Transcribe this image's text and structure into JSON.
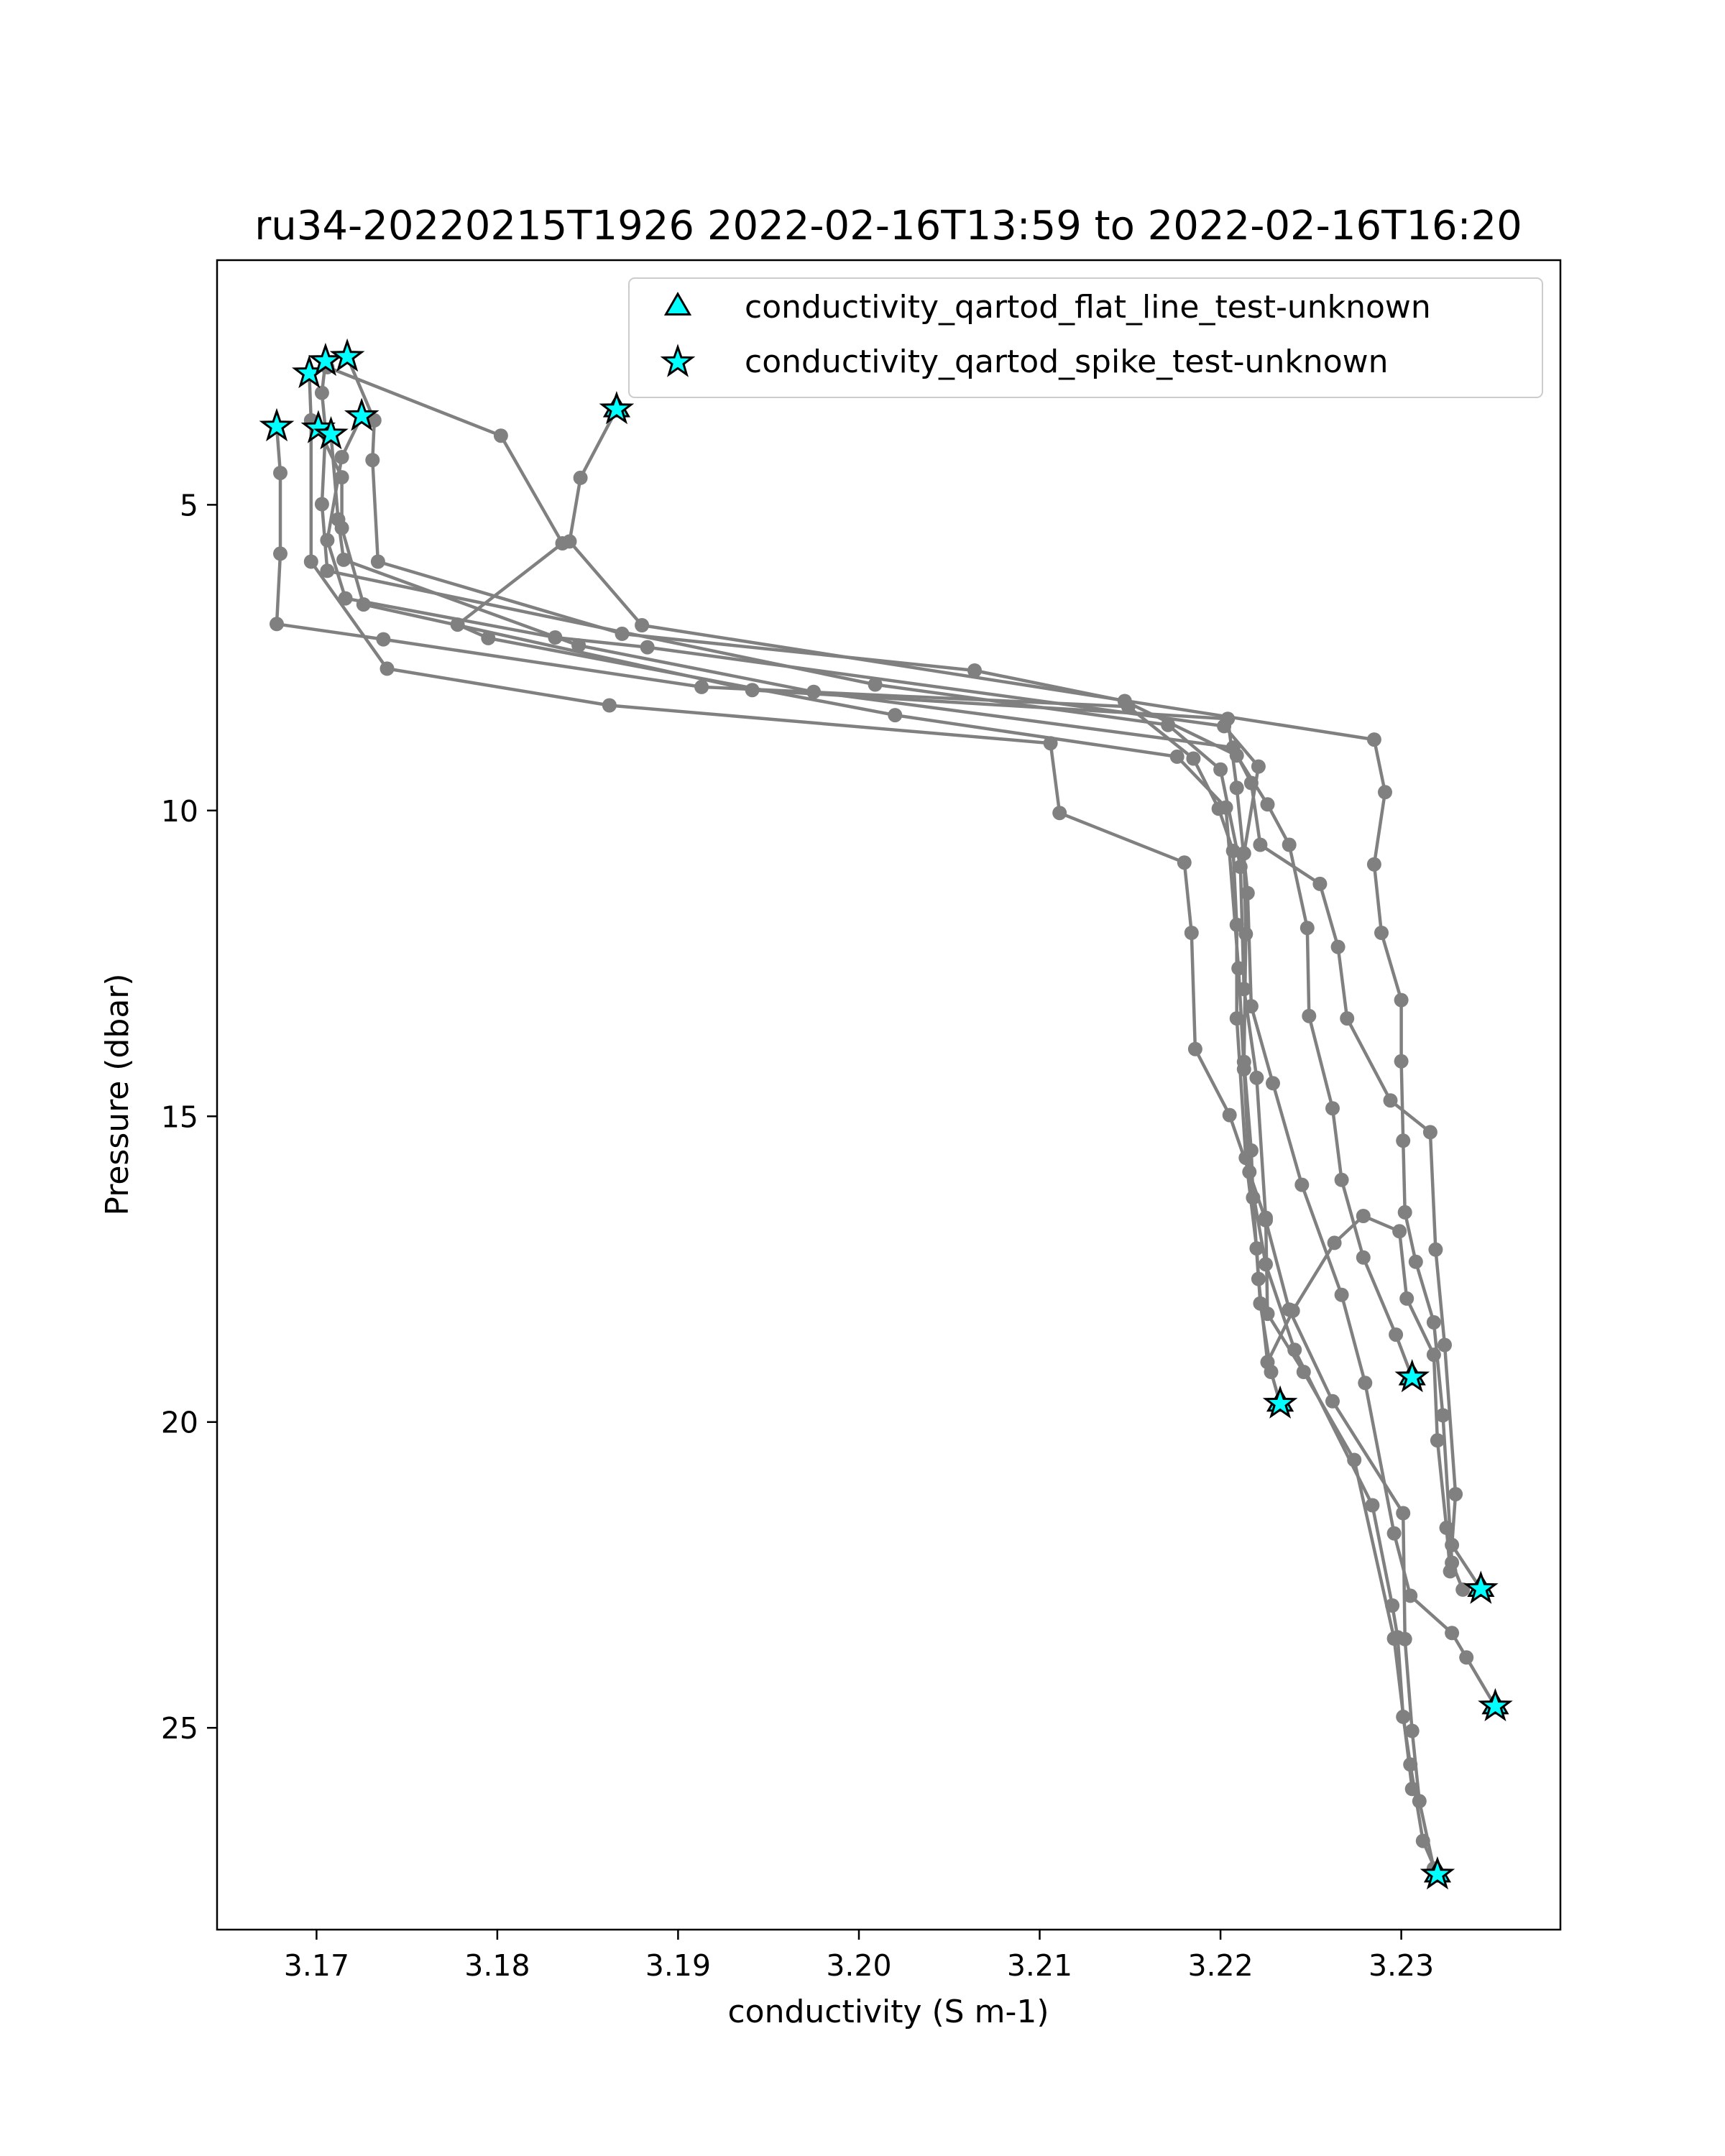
{
  "colors": {
    "profile_line": "#808080",
    "marker_fill": "#00ffff",
    "marker_edge": "#000000",
    "axes": "#000000",
    "legend_border": "#cccccc"
  },
  "chart_data": {
    "type": "scatter",
    "title": "ru34-20220215T1926 2022-02-16T13:59 to 2022-02-16T16:20",
    "xlabel": "conductivity (S m-1)",
    "ylabel": "Pressure (dbar)",
    "xlim": [
      3.1645,
      3.2388
    ],
    "ylim": [
      28.3,
      1.0
    ],
    "y_inverted": true,
    "grid": false,
    "legend_position": "top-right",
    "x_ticks": [
      3.17,
      3.18,
      3.19,
      3.2,
      3.21,
      3.22,
      3.23
    ],
    "x_tick_labels": [
      "3.17",
      "3.18",
      "3.19",
      "3.20",
      "3.21",
      "3.22",
      "3.23"
    ],
    "y_ticks": [
      5,
      10,
      15,
      20,
      25
    ],
    "y_tick_labels": [
      "5",
      "10",
      "15",
      "20",
      "25"
    ],
    "legend": [
      {
        "label": "conductivity_qartod_flat_line_test-unknown",
        "marker": "triangle"
      },
      {
        "label": "conductivity_qartod_spike_test-unknown",
        "marker": "star"
      }
    ],
    "profiles": [
      [
        [
          3.1678,
          3.72
        ],
        [
          3.168,
          4.48
        ],
        [
          3.168,
          5.8
        ],
        [
          3.1678,
          6.95
        ],
        [
          3.1737,
          7.2
        ],
        [
          3.1913,
          7.98
        ],
        [
          3.2149,
          8.3
        ],
        [
          3.2185,
          9.15
        ],
        [
          3.2199,
          9.97
        ],
        [
          3.2207,
          10.66
        ],
        [
          3.2209,
          11.87
        ],
        [
          3.2209,
          13.4
        ],
        [
          3.2214,
          15.68
        ],
        [
          3.222,
          17.16
        ],
        [
          3.2222,
          18.06
        ],
        [
          3.2228,
          19.18
        ],
        [
          3.2233,
          19.7
        ]
      ],
      [
        [
          3.1696,
          2.85
        ],
        [
          3.1697,
          3.62
        ],
        [
          3.1697,
          5.93
        ],
        [
          3.1739,
          7.68
        ],
        [
          3.1862,
          8.28
        ],
        [
          3.2106,
          8.9
        ],
        [
          3.2111,
          10.04
        ],
        [
          3.218,
          10.85
        ],
        [
          3.2184,
          12.0
        ],
        [
          3.2186,
          13.9
        ],
        [
          3.2205,
          14.98
        ],
        [
          3.2225,
          16.7
        ],
        [
          3.2238,
          18.16
        ],
        [
          3.2262,
          19.66
        ],
        [
          3.2301,
          21.49
        ],
        [
          3.2302,
          23.55
        ],
        [
          3.2306,
          25.05
        ],
        [
          3.231,
          26.2
        ],
        [
          3.2318,
          27.3
        ]
      ],
      [
        [
          3.1705,
          2.65
        ],
        [
          3.1703,
          3.17
        ],
        [
          3.1705,
          3.79
        ],
        [
          3.1703,
          4.99
        ],
        [
          3.1706,
          6.08
        ],
        [
          3.2009,
          7.94
        ],
        [
          3.2171,
          8.6
        ],
        [
          3.22,
          9.33
        ],
        [
          3.2211,
          10.92
        ],
        [
          3.2213,
          12.92
        ],
        [
          3.222,
          14.37
        ],
        [
          3.2225,
          16.66
        ],
        [
          3.2226,
          18.23
        ],
        [
          3.2246,
          19.18
        ],
        [
          3.2274,
          20.62
        ],
        [
          3.2296,
          23.54
        ],
        [
          3.2306,
          26.0
        ]
      ],
      [
        [
          3.1717,
          2.58
        ],
        [
          3.1732,
          3.62
        ],
        [
          3.1731,
          4.27
        ],
        [
          3.1734,
          5.93
        ],
        [
          3.1869,
          7.11
        ],
        [
          3.2064,
          7.71
        ],
        [
          3.2147,
          8.21
        ],
        [
          3.2209,
          9.1
        ],
        [
          3.2226,
          9.9
        ],
        [
          3.2238,
          10.56
        ],
        [
          3.2248,
          11.92
        ],
        [
          3.2249,
          13.36
        ],
        [
          3.2262,
          14.87
        ],
        [
          3.2267,
          16.04
        ],
        [
          3.2279,
          17.31
        ],
        [
          3.2297,
          18.57
        ],
        [
          3.2306,
          19.27
        ]
      ],
      [
        [
          3.1701,
          3.75
        ],
        [
          3.1714,
          4.55
        ],
        [
          3.1714,
          5.38
        ],
        [
          3.1726,
          6.63
        ],
        [
          3.1941,
          8.03
        ],
        [
          3.2204,
          8.5
        ],
        [
          3.2209,
          9.63
        ],
        [
          3.2215,
          11.35
        ],
        [
          3.2217,
          13.2
        ],
        [
          3.2229,
          14.46
        ],
        [
          3.2245,
          16.12
        ],
        [
          3.2267,
          17.92
        ],
        [
          3.228,
          19.36
        ],
        [
          3.2296,
          21.82
        ],
        [
          3.2305,
          22.84
        ],
        [
          3.2328,
          23.45
        ],
        [
          3.2336,
          23.85
        ],
        [
          3.2352,
          24.65
        ]
      ],
      [
        [
          3.1708,
          3.85
        ],
        [
          3.1712,
          5.24
        ],
        [
          3.1715,
          5.9
        ],
        [
          3.1845,
          7.3
        ],
        [
          3.1975,
          8.06
        ],
        [
          3.2207,
          8.97
        ],
        [
          3.2217,
          9.55
        ],
        [
          3.2222,
          10.56
        ],
        [
          3.2255,
          11.2
        ],
        [
          3.2265,
          12.23
        ],
        [
          3.227,
          13.4
        ],
        [
          3.2294,
          14.74
        ],
        [
          3.2316,
          15.26
        ],
        [
          3.2319,
          17.18
        ],
        [
          3.2324,
          18.74
        ],
        [
          3.233,
          21.18
        ],
        [
          3.2328,
          22.01
        ],
        [
          3.2344,
          22.73
        ]
      ],
      [
        [
          3.1866,
          3.44
        ],
        [
          3.1846,
          4.56
        ],
        [
          3.184,
          5.6
        ],
        [
          3.188,
          6.97
        ],
        [
          3.2285,
          8.84
        ],
        [
          3.2291,
          9.7
        ],
        [
          3.2285,
          10.88
        ],
        [
          3.2289,
          12.0
        ],
        [
          3.23,
          13.1
        ],
        [
          3.23,
          14.1
        ],
        [
          3.2301,
          15.4
        ],
        [
          3.2302,
          16.57
        ],
        [
          3.2308,
          17.38
        ],
        [
          3.2318,
          18.37
        ],
        [
          3.2323,
          19.89
        ],
        [
          3.2328,
          22.3
        ],
        [
          3.2334,
          22.74
        ]
      ],
      [
        [
          3.1725,
          3.55
        ],
        [
          3.1714,
          4.22
        ],
        [
          3.1706,
          5.58
        ],
        [
          3.1716,
          6.53
        ],
        [
          3.1832,
          7.17
        ],
        [
          3.1883,
          7.33
        ],
        [
          3.2202,
          8.62
        ],
        [
          3.2221,
          9.28
        ],
        [
          3.2213,
          10.7
        ],
        [
          3.2214,
          12.02
        ],
        [
          3.2213,
          14.11
        ],
        [
          3.2217,
          15.56
        ],
        [
          3.2218,
          16.33
        ],
        [
          3.2221,
          17.66
        ],
        [
          3.2226,
          19.02
        ],
        [
          3.224,
          18.18
        ],
        [
          3.2263,
          17.07
        ],
        [
          3.2279,
          16.63
        ],
        [
          3.2299,
          16.88
        ],
        [
          3.2303,
          17.98
        ],
        [
          3.2318,
          18.9
        ],
        [
          3.232,
          20.3
        ],
        [
          3.2325,
          21.73
        ],
        [
          3.2327,
          22.44
        ]
      ],
      [
        [
          3.1706,
          2.75
        ],
        [
          3.1802,
          3.87
        ],
        [
          3.1836,
          5.63
        ],
        [
          3.1778,
          6.96
        ],
        [
          3.1795,
          7.18
        ],
        [
          3.202,
          8.44
        ],
        [
          3.2176,
          9.12
        ],
        [
          3.2203,
          9.95
        ],
        [
          3.221,
          12.58
        ],
        [
          3.2213,
          14.23
        ],
        [
          3.2216,
          15.91
        ],
        [
          3.2225,
          17.42
        ],
        [
          3.2241,
          18.82
        ],
        [
          3.2284,
          21.36
        ],
        [
          3.2295,
          23.0
        ],
        [
          3.2298,
          23.52
        ],
        [
          3.2301,
          24.82
        ],
        [
          3.2305,
          25.6
        ],
        [
          3.2312,
          26.85
        ],
        [
          3.232,
          27.4
        ]
      ]
    ],
    "spike_flags": [
      [
        3.1678,
        3.72
      ],
      [
        3.1696,
        2.85
      ],
      [
        3.1705,
        2.65
      ],
      [
        3.1717,
        2.58
      ],
      [
        3.1701,
        3.75
      ],
      [
        3.1708,
        3.85
      ],
      [
        3.1866,
        3.44
      ],
      [
        3.1725,
        3.55
      ],
      [
        3.2233,
        19.7
      ],
      [
        3.2306,
        19.27
      ],
      [
        3.2344,
        22.73
      ],
      [
        3.2352,
        24.65
      ],
      [
        3.232,
        27.4
      ]
    ],
    "flat_line_flags": [
      [
        3.1866,
        3.44
      ],
      [
        3.2233,
        19.7
      ],
      [
        3.2306,
        19.27
      ],
      [
        3.2344,
        22.73
      ],
      [
        3.2352,
        24.65
      ],
      [
        3.232,
        27.4
      ]
    ]
  }
}
